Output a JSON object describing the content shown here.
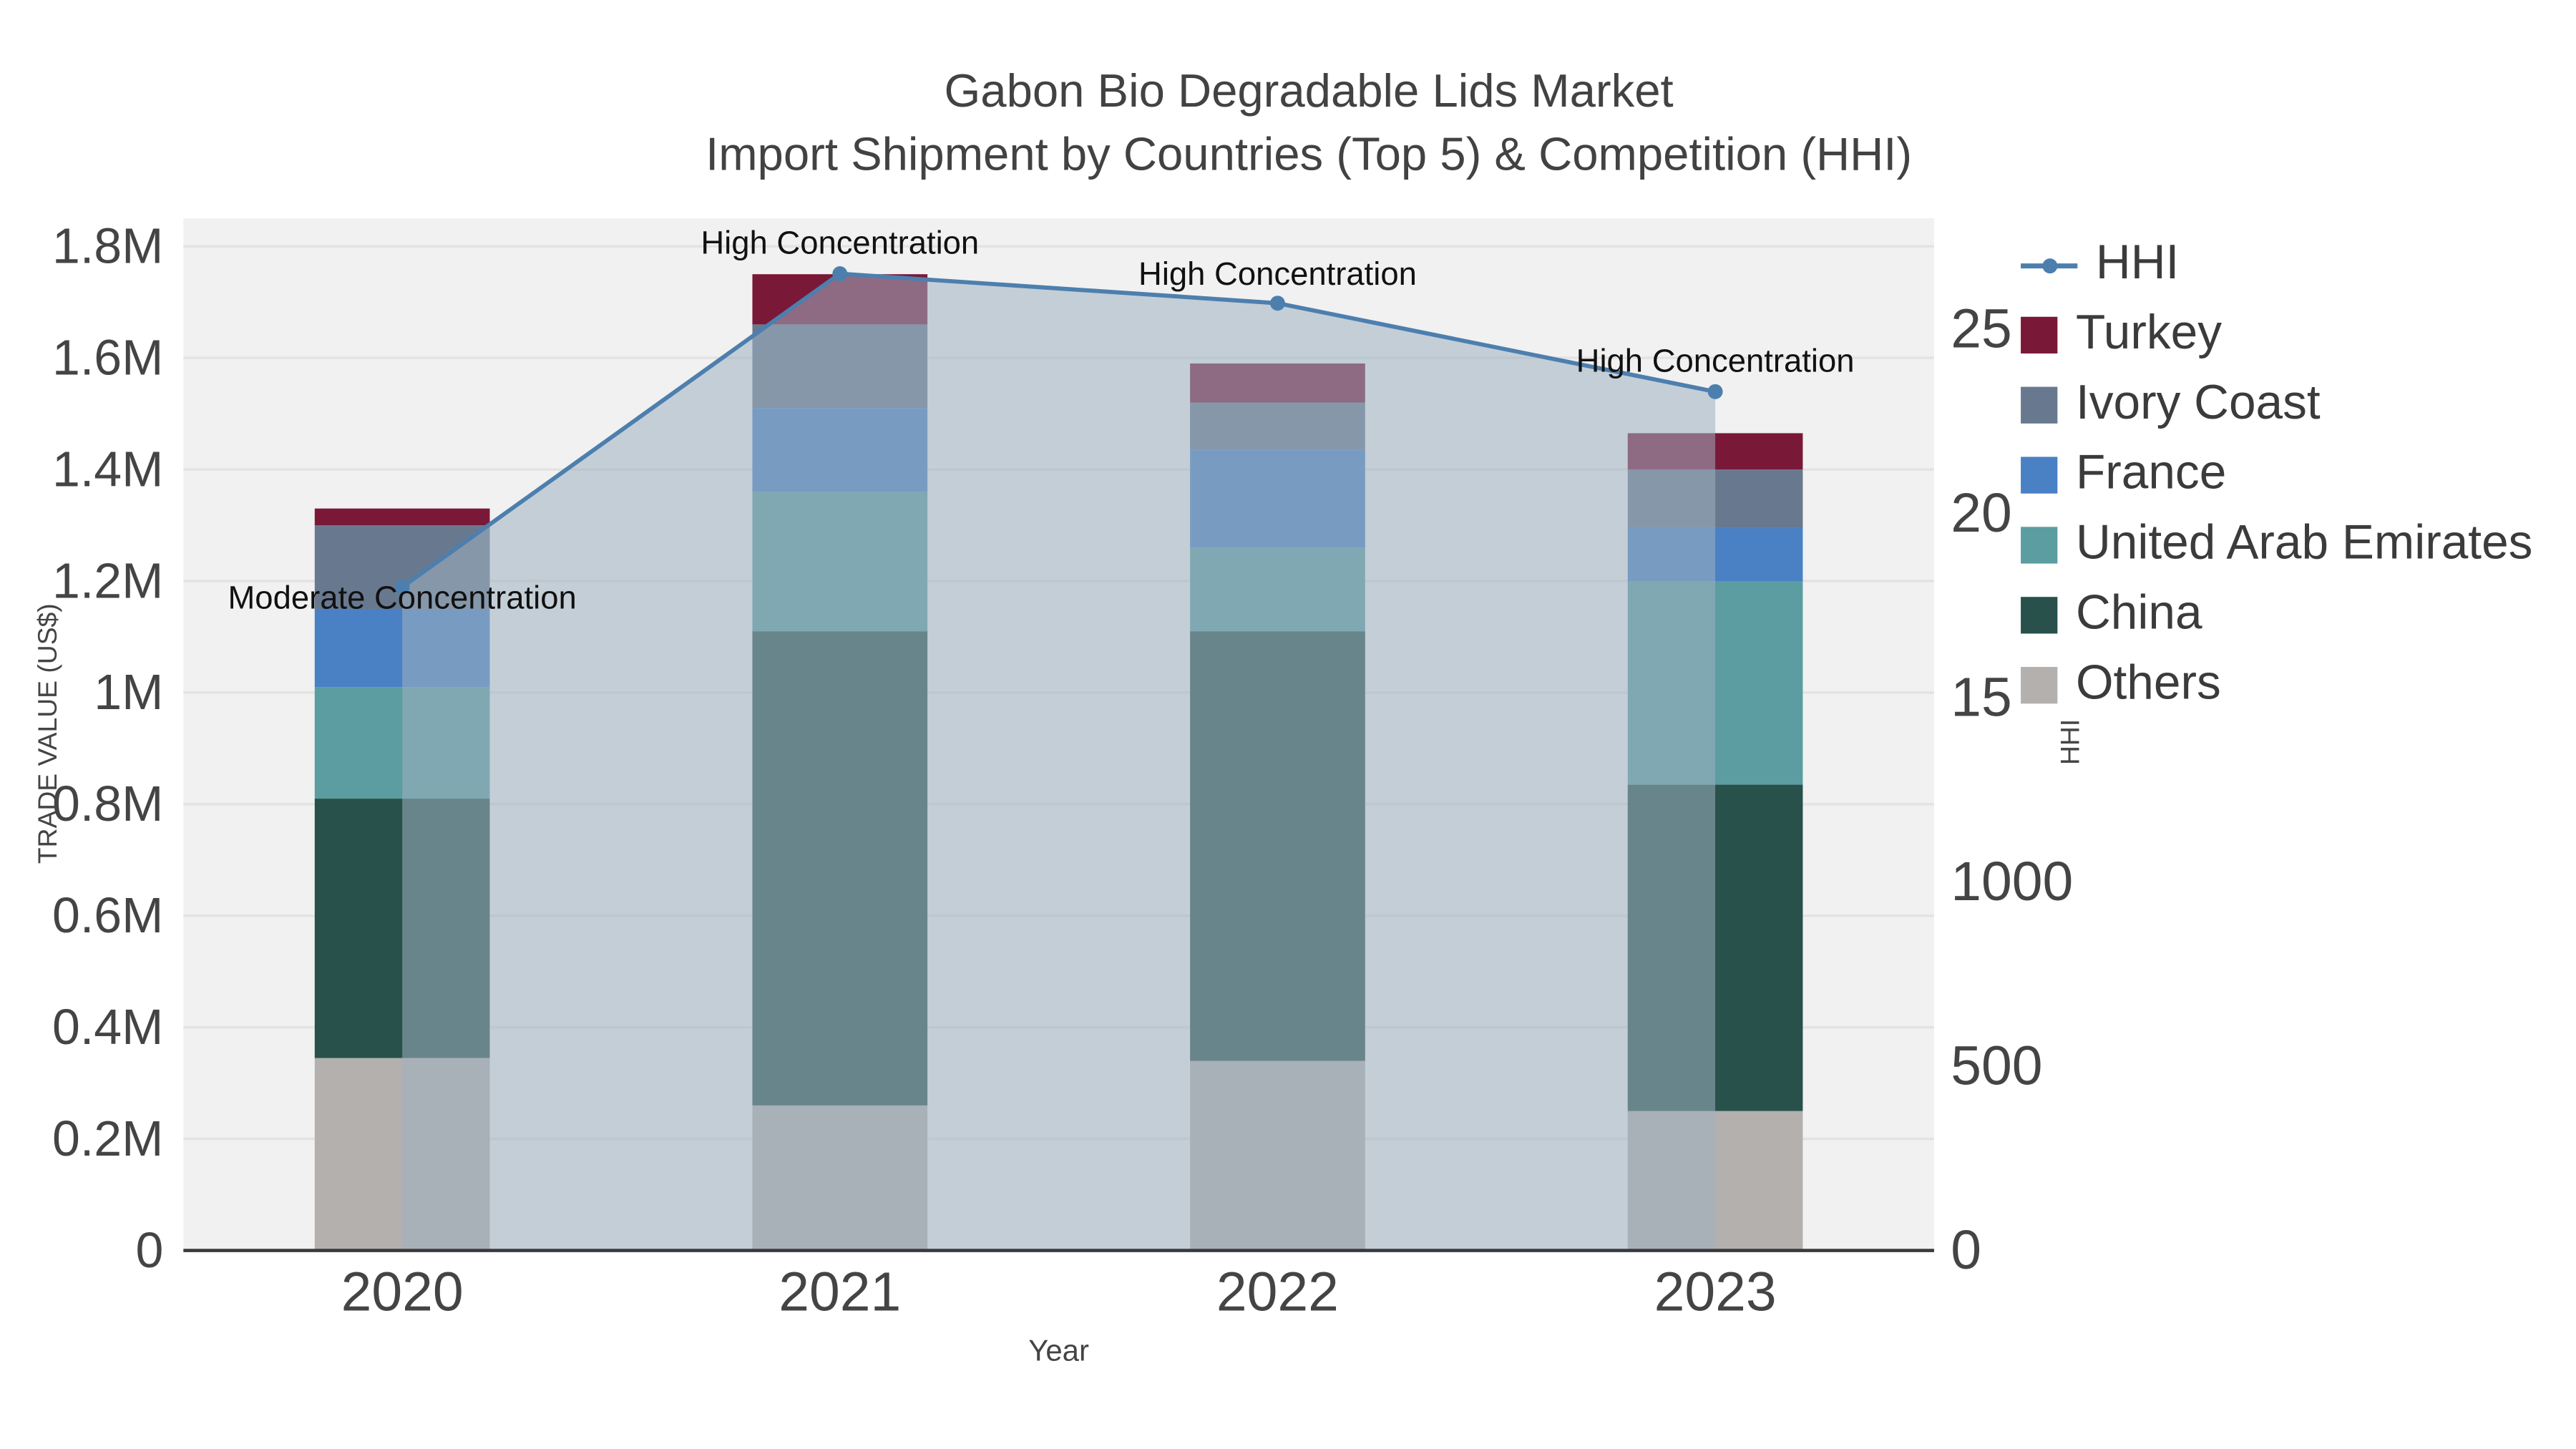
{
  "chart_data": {
    "type": "bar",
    "stacked": true,
    "title": "Gabon Bio Degradable Lids Market",
    "subtitle": "Import Shipment by Countries (Top 5) & Competition (HHI)",
    "xlabel": "Year",
    "ylabel_left": "TRADE VALUE (US$)",
    "ylabel_right": "HHI",
    "categories": [
      "2020",
      "2021",
      "2022",
      "2023"
    ],
    "series": [
      {
        "name": "Others",
        "color": "#b3b0ae",
        "values": [
          345000,
          260000,
          340000,
          250000
        ]
      },
      {
        "name": "China",
        "color": "#27514a",
        "values": [
          465000,
          850000,
          770000,
          585000
        ]
      },
      {
        "name": "United Arab Emirates",
        "color": "#5b9da0",
        "values": [
          200000,
          250000,
          150000,
          365000
        ]
      },
      {
        "name": "France",
        "color": "#4a80c4",
        "values": [
          140000,
          150000,
          175000,
          95000
        ]
      },
      {
        "name": "Ivory Coast",
        "color": "#68798f",
        "values": [
          150000,
          150000,
          85000,
          105000
        ]
      },
      {
        "name": "Turkey",
        "color": "#7a1838",
        "values": [
          30000,
          90000,
          70000,
          65000
        ]
      }
    ],
    "line": {
      "name": "HHI",
      "color": "#4d7fae",
      "fill": "#9fb0c1",
      "fill_opacity": 0.55,
      "values": [
        1800,
        2650,
        2570,
        2330
      ]
    },
    "left_axis": {
      "max": 1850000,
      "tickvals": [
        0,
        200000,
        400000,
        600000,
        800000,
        1000000,
        1200000,
        1400000,
        1600000,
        1800000
      ],
      "ticktext": [
        "0",
        "0.2M",
        "0.4M",
        "0.6M",
        "0.8M",
        "1M",
        "1.2M",
        "1.4M",
        "1.6M",
        "1.8M"
      ]
    },
    "right_axis": {
      "max": 2800,
      "tickvals": [
        0,
        500,
        1000,
        1500,
        2000,
        2500
      ],
      "ticktext": [
        "0",
        "500",
        "1000",
        "1500",
        "2000",
        "2500"
      ]
    },
    "annotations": [
      {
        "x": "2020",
        "text": "Moderate Concentration",
        "dy": 13
      },
      {
        "x": "2021",
        "text": "High Concentration",
        "dy": -12
      },
      {
        "x": "2022",
        "text": "High Concentration",
        "dy": -11
      },
      {
        "x": "2023",
        "text": "High Concentration",
        "dy": -12
      }
    ],
    "legend_order": [
      "HHI",
      "Turkey",
      "Ivory Coast",
      "France",
      "United Arab Emirates",
      "China",
      "Others"
    ],
    "grid": true,
    "legend_position": "right",
    "plot_bg": "#f1f1f1",
    "grid_color": "#e3e3e3",
    "axis_text_color": "#444444",
    "annotation_color": "#111111"
  }
}
